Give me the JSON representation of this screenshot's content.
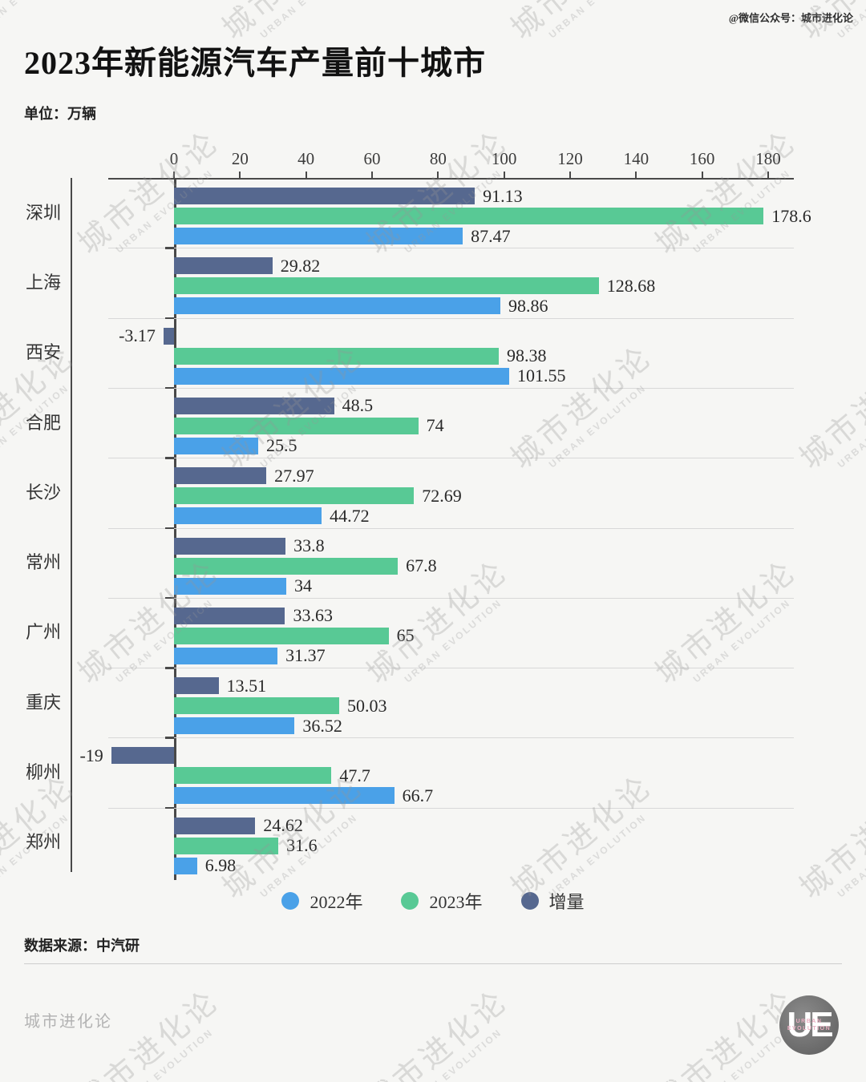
{
  "page": {
    "credit_top_right": "@微信公众号：城市进化论",
    "title": "2023年新能源汽车产量前十城市",
    "unit_label": "单位：万辆",
    "source_label": "数据来源：中汽研",
    "footer_brand": "城市进化论",
    "logo": {
      "letters": "UE",
      "line1": "URBAN",
      "line2": "EVOLUTION"
    },
    "watermark": {
      "cjk": "城市进化论",
      "latin": "URBAN EVOLUTION"
    }
  },
  "colors": {
    "y2022": "#4aa1e8",
    "y2023": "#58c995",
    "delta": "#56688f",
    "axis": "#494949",
    "separator": "#d8d8d8"
  },
  "chart_data": {
    "type": "bar",
    "orientation": "horizontal",
    "title": "2023年新能源汽车产量前十城市",
    "unit": "万辆",
    "xlim": [
      0,
      180
    ],
    "x_ticks": [
      0,
      20,
      40,
      60,
      80,
      100,
      120,
      140,
      160,
      180
    ],
    "grid": "group-separators",
    "legend_position": "bottom-center",
    "categories": [
      "深圳",
      "上海",
      "西安",
      "合肥",
      "长沙",
      "常州",
      "广州",
      "重庆",
      "柳州",
      "郑州"
    ],
    "series": [
      {
        "name": "增量",
        "key": "delta",
        "color_key": "delta",
        "values": [
          "91.13",
          "29.82",
          "-3.17",
          "48.5",
          "27.97",
          "33.8",
          "33.63",
          "13.51",
          "-19",
          "24.62"
        ]
      },
      {
        "name": "2023年",
        "key": "y2023",
        "color_key": "y2023",
        "values": [
          "178.6",
          "128.68",
          "98.38",
          "74",
          "72.69",
          "67.8",
          "65",
          "50.03",
          "47.7",
          "31.6"
        ]
      },
      {
        "name": "2022年",
        "key": "y2022",
        "color_key": "y2022",
        "values": [
          "87.47",
          "98.86",
          "101.55",
          "25.5",
          "44.72",
          "34",
          "31.37",
          "36.52",
          "66.7",
          "6.98"
        ]
      }
    ],
    "legend": [
      {
        "label": "2022年",
        "color_key": "y2022"
      },
      {
        "label": "2023年",
        "color_key": "y2023"
      },
      {
        "label": "增量",
        "color_key": "delta"
      }
    ]
  }
}
